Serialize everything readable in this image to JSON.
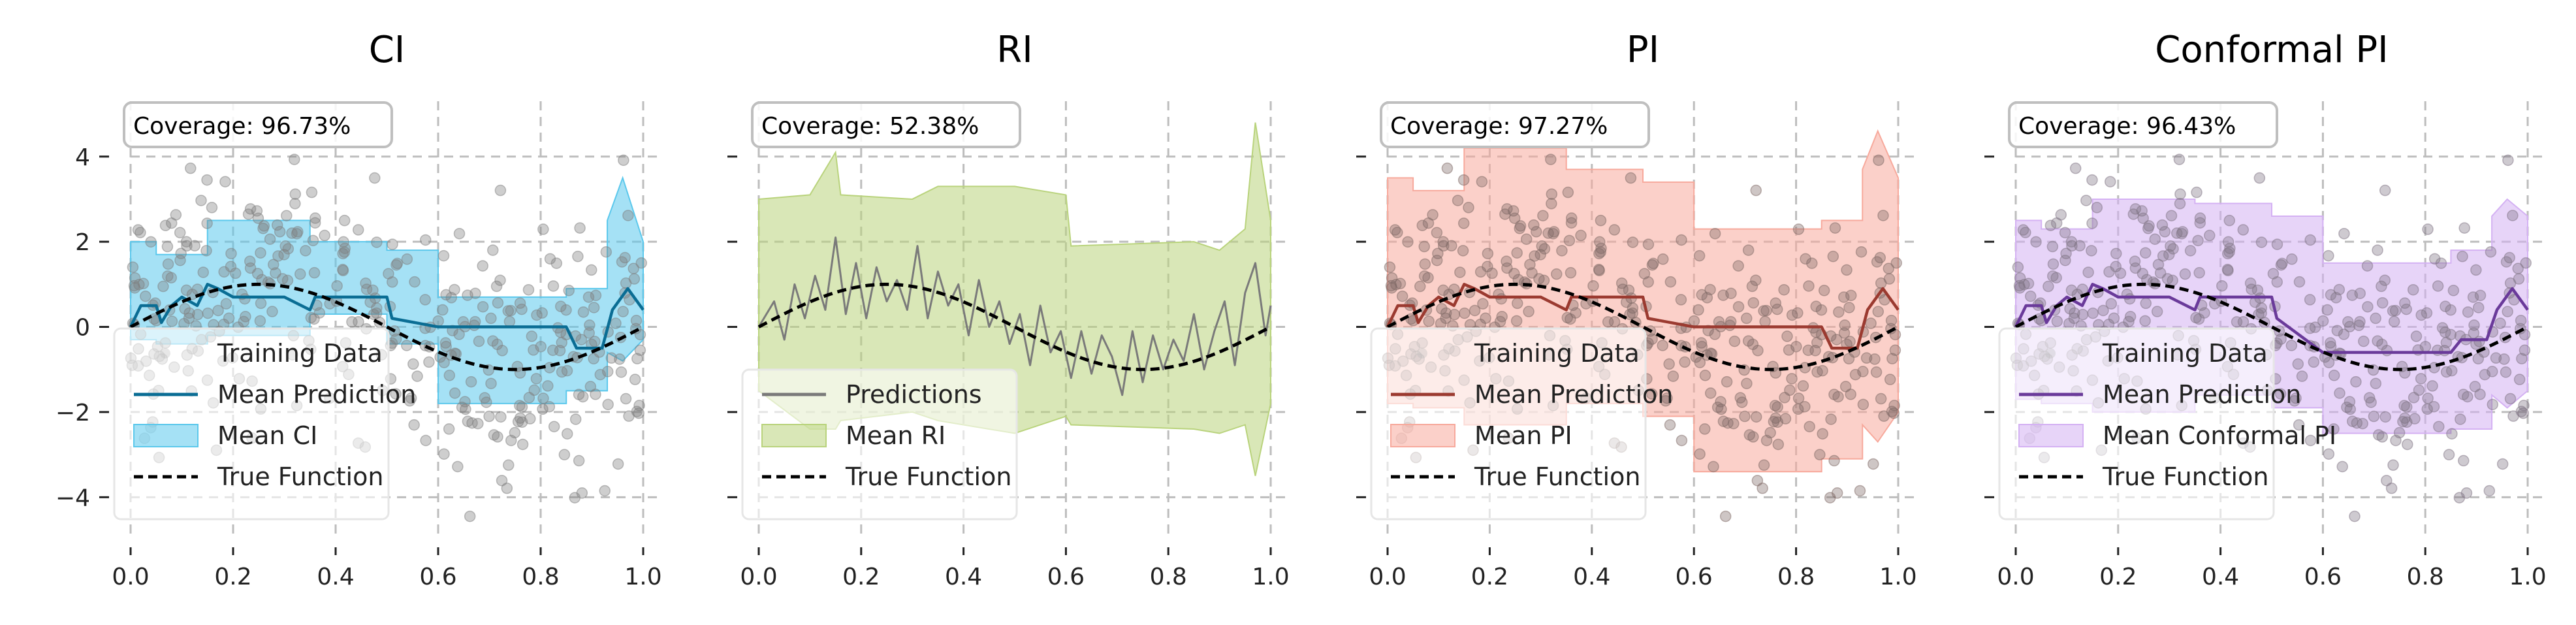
{
  "figure": {
    "background": "#ffffff"
  },
  "chart_data": [
    {
      "type": "line",
      "title": "CI",
      "coverage": "Coverage: 96.73%",
      "color": "#0a6d94",
      "fill_color": "#5bc8ec",
      "xlim": [
        0.0,
        1.0
      ],
      "ylim": [
        -4.9,
        5.3
      ],
      "x_ticks": [
        "0.0",
        "0.2",
        "0.4",
        "0.6",
        "0.8",
        "1.0"
      ],
      "y_ticks": [
        "4",
        "2",
        "0",
        "−2",
        "−4"
      ],
      "grid": true,
      "legend_position": "lower-left",
      "legend": [
        {
          "label": "Training Data",
          "kind": "marker",
          "color": "#b9b9b9"
        },
        {
          "label": "Mean Prediction",
          "kind": "line",
          "color": "#0a6d94"
        },
        {
          "label": "Mean CI",
          "kind": "patch",
          "color": "#5bc8ec"
        },
        {
          "label": "True Function",
          "kind": "dashed",
          "color": "#000000"
        }
      ],
      "band_x": [
        0.0,
        0.05,
        0.05,
        0.15,
        0.15,
        0.35,
        0.35,
        0.5,
        0.5,
        0.6,
        0.6,
        0.85,
        0.85,
        0.93,
        0.93,
        0.96,
        1.0
      ],
      "band_lower": [
        -0.3,
        -0.3,
        -0.4,
        -0.4,
        -0.2,
        -0.2,
        0.3,
        0.3,
        -0.4,
        -0.4,
        -1.8,
        -1.8,
        -1.5,
        -1.5,
        -0.6,
        -0.8,
        -0.3
      ],
      "band_upper": [
        2.0,
        2.0,
        1.7,
        1.7,
        2.5,
        2.5,
        2.0,
        2.0,
        1.8,
        1.8,
        0.7,
        0.7,
        0.9,
        0.9,
        2.5,
        3.5,
        2.0
      ],
      "prediction_x": [
        0.0,
        0.02,
        0.05,
        0.06,
        0.08,
        0.1,
        0.13,
        0.15,
        0.17,
        0.2,
        0.3,
        0.35,
        0.36,
        0.5,
        0.51,
        0.6,
        0.85,
        0.87,
        0.92,
        0.94,
        0.97,
        1.0
      ],
      "prediction_y": [
        0.0,
        0.5,
        0.5,
        0.1,
        0.5,
        0.7,
        0.5,
        1.0,
        0.9,
        0.7,
        0.7,
        0.4,
        0.7,
        0.7,
        0.2,
        0.0,
        0.0,
        -0.5,
        -0.5,
        0.4,
        0.9,
        0.4
      ],
      "scatter_color": "#7f7f7f",
      "show_scatter": true,
      "true_function": "sin(2*pi*x)"
    },
    {
      "type": "line",
      "title": "RI",
      "coverage": "Coverage: 52.38%",
      "color": "#7a7a7a",
      "fill_color": "#b9d37c",
      "xlim": [
        0.0,
        1.0
      ],
      "ylim": [
        -4.9,
        5.3
      ],
      "x_ticks": [
        "0.0",
        "0.2",
        "0.4",
        "0.6",
        "0.8",
        "1.0"
      ],
      "y_ticks": [
        "",
        "",
        "",
        "",
        ""
      ],
      "grid": true,
      "legend_position": "lower-left",
      "legend": [
        {
          "label": "Predictions",
          "kind": "line",
          "color": "#7a7a7a"
        },
        {
          "label": "Mean RI",
          "kind": "patch",
          "color": "#b9d37c"
        },
        {
          "label": "True Function",
          "kind": "dashed",
          "color": "#000000"
        }
      ],
      "band_x": [
        0.0,
        0.1,
        0.15,
        0.16,
        0.3,
        0.35,
        0.5,
        0.6,
        0.61,
        0.85,
        0.9,
        0.95,
        0.97,
        1.0
      ],
      "band_lower": [
        -1.5,
        -2.4,
        -2.4,
        -2.2,
        -2.0,
        -2.2,
        -2.5,
        -2.1,
        -2.3,
        -2.4,
        -2.5,
        -2.3,
        -3.5,
        -1.8
      ],
      "band_upper": [
        3.0,
        3.1,
        4.1,
        3.1,
        3.0,
        3.3,
        3.3,
        3.1,
        1.9,
        2.0,
        1.8,
        2.3,
        4.8,
        2.5
      ],
      "prediction_x": [
        0.0,
        0.03,
        0.05,
        0.07,
        0.09,
        0.11,
        0.13,
        0.15,
        0.17,
        0.19,
        0.21,
        0.23,
        0.25,
        0.27,
        0.29,
        0.31,
        0.33,
        0.35,
        0.37,
        0.39,
        0.41,
        0.43,
        0.45,
        0.47,
        0.49,
        0.51,
        0.53,
        0.55,
        0.57,
        0.59,
        0.61,
        0.63,
        0.65,
        0.67,
        0.69,
        0.71,
        0.73,
        0.75,
        0.77,
        0.79,
        0.81,
        0.83,
        0.85,
        0.87,
        0.89,
        0.91,
        0.93,
        0.95,
        0.97,
        0.99,
        1.0
      ],
      "prediction_y": [
        0.0,
        0.6,
        -0.3,
        1.0,
        0.2,
        1.2,
        0.4,
        2.1,
        0.3,
        1.5,
        0.2,
        1.4,
        0.6,
        1.1,
        0.4,
        1.9,
        0.2,
        1.3,
        0.5,
        1.0,
        -0.2,
        1.1,
        0.0,
        0.6,
        -0.4,
        0.3,
        -0.9,
        0.5,
        -0.6,
        -0.1,
        -1.2,
        -0.1,
        -1.1,
        -0.2,
        -0.7,
        -1.6,
        -0.1,
        -1.3,
        -0.2,
        -1.0,
        -0.3,
        -0.8,
        0.3,
        -1.0,
        -0.1,
        0.6,
        -0.9,
        0.8,
        1.5,
        -0.2,
        0.5
      ],
      "scatter_color": "#7f7f7f",
      "show_scatter": false,
      "true_function": "sin(2*pi*x)"
    },
    {
      "type": "line",
      "title": "PI",
      "coverage": "Coverage: 97.27%",
      "color": "#9b3a30",
      "fill_color": "#f7a99c",
      "xlim": [
        0.0,
        1.0
      ],
      "ylim": [
        -4.9,
        5.3
      ],
      "x_ticks": [
        "0.0",
        "0.2",
        "0.4",
        "0.6",
        "0.8",
        "1.0"
      ],
      "y_ticks": [
        "",
        "",
        "",
        "",
        ""
      ],
      "grid": true,
      "legend_position": "lower-left",
      "legend": [
        {
          "label": "Training Data",
          "kind": "marker",
          "color": "#b9b9b9"
        },
        {
          "label": "Mean Prediction",
          "kind": "line",
          "color": "#9b3a30"
        },
        {
          "label": "Mean PI",
          "kind": "patch",
          "color": "#f7a99c"
        },
        {
          "label": "True Function",
          "kind": "dashed",
          "color": "#000000"
        }
      ],
      "band_x": [
        0.0,
        0.05,
        0.05,
        0.15,
        0.15,
        0.35,
        0.35,
        0.5,
        0.5,
        0.6,
        0.6,
        0.85,
        0.85,
        0.93,
        0.93,
        0.96,
        1.0
      ],
      "band_lower": [
        -1.8,
        -1.8,
        -1.9,
        -1.9,
        -2.3,
        -2.3,
        -1.8,
        -1.8,
        -2.1,
        -2.1,
        -3.4,
        -3.4,
        -3.1,
        -3.1,
        -2.3,
        -2.7,
        -2.0
      ],
      "band_upper": [
        3.5,
        3.5,
        3.2,
        3.2,
        4.2,
        4.2,
        3.7,
        3.7,
        3.4,
        3.4,
        2.3,
        2.3,
        2.5,
        2.5,
        3.7,
        4.6,
        3.5
      ],
      "prediction_x": [
        0.0,
        0.02,
        0.05,
        0.06,
        0.08,
        0.1,
        0.13,
        0.15,
        0.17,
        0.2,
        0.3,
        0.35,
        0.36,
        0.5,
        0.51,
        0.6,
        0.85,
        0.87,
        0.92,
        0.94,
        0.97,
        1.0
      ],
      "prediction_y": [
        0.0,
        0.5,
        0.5,
        0.1,
        0.5,
        0.7,
        0.5,
        1.0,
        0.9,
        0.7,
        0.7,
        0.4,
        0.7,
        0.7,
        0.2,
        0.0,
        0.0,
        -0.5,
        -0.5,
        0.4,
        0.9,
        0.4
      ],
      "scatter_color": "#7f6a66",
      "show_scatter": true,
      "true_function": "sin(2*pi*x)"
    },
    {
      "type": "line",
      "title": "Conformal PI",
      "coverage": "Coverage: 96.43%",
      "color": "#6a3a9a",
      "fill_color": "#d4b1f3",
      "xlim": [
        0.0,
        1.0
      ],
      "ylim": [
        -4.9,
        5.3
      ],
      "x_ticks": [
        "0.0",
        "0.2",
        "0.4",
        "0.6",
        "0.8",
        "1.0"
      ],
      "y_ticks": [
        "",
        "",
        "",
        "",
        ""
      ],
      "grid": true,
      "legend_position": "lower-left",
      "legend": [
        {
          "label": "Training Data",
          "kind": "marker",
          "color": "#b9b9b9"
        },
        {
          "label": "Mean Prediction",
          "kind": "line",
          "color": "#6a3a9a"
        },
        {
          "label": "Mean Conformal PI",
          "kind": "patch",
          "color": "#d4b1f3"
        },
        {
          "label": "True Function",
          "kind": "dashed",
          "color": "#000000"
        }
      ],
      "band_x": [
        0.0,
        0.05,
        0.05,
        0.15,
        0.15,
        0.35,
        0.35,
        0.5,
        0.5,
        0.6,
        0.6,
        0.85,
        0.85,
        0.93,
        0.93,
        0.96,
        1.0
      ],
      "band_lower": [
        -1.7,
        -1.7,
        -1.8,
        -1.8,
        -2.0,
        -2.0,
        -1.6,
        -1.6,
        -1.9,
        -1.9,
        -2.5,
        -2.5,
        -2.4,
        -2.4,
        -1.6,
        -1.9,
        -1.5
      ],
      "band_upper": [
        2.5,
        2.5,
        2.3,
        2.3,
        3.0,
        3.0,
        2.9,
        2.9,
        2.6,
        2.6,
        1.5,
        1.5,
        1.8,
        1.8,
        2.6,
        3.0,
        2.6
      ],
      "prediction_x": [
        0.0,
        0.02,
        0.05,
        0.06,
        0.08,
        0.1,
        0.13,
        0.15,
        0.17,
        0.2,
        0.3,
        0.35,
        0.36,
        0.5,
        0.51,
        0.6,
        0.85,
        0.87,
        0.92,
        0.94,
        0.97,
        1.0
      ],
      "prediction_y": [
        0.0,
        0.5,
        0.5,
        0.1,
        0.5,
        0.7,
        0.5,
        1.0,
        0.9,
        0.7,
        0.7,
        0.4,
        0.7,
        0.7,
        0.2,
        -0.6,
        -0.6,
        -0.3,
        -0.3,
        0.4,
        0.9,
        0.4
      ],
      "scatter_color": "#7f7384",
      "show_scatter": true,
      "true_function": "sin(2*pi*x)"
    }
  ]
}
